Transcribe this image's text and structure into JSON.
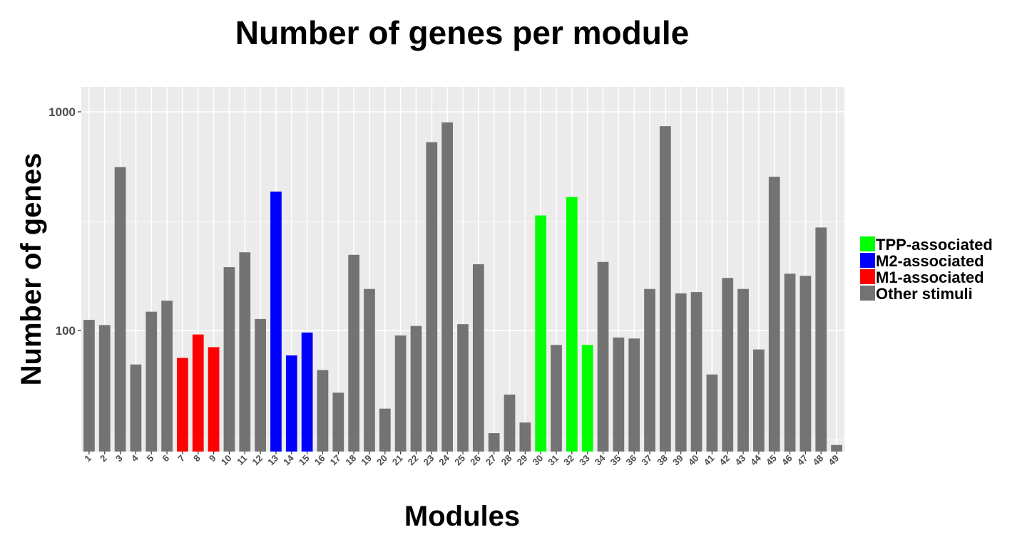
{
  "chart_data": {
    "type": "bar",
    "title": "Number of genes per module",
    "xlabel": "Modules",
    "ylabel": "Number of genes",
    "y_scale": "log10",
    "ylim": [
      28,
      1300
    ],
    "y_ticks": [
      100,
      1000
    ],
    "y_tick_labels": [
      "100",
      "1000"
    ],
    "grid": true,
    "legend_position": "right",
    "categories": [
      "1",
      "2",
      "3",
      "4",
      "5",
      "6",
      "7",
      "8",
      "9",
      "10",
      "11",
      "12",
      "13",
      "14",
      "15",
      "16",
      "17",
      "18",
      "19",
      "20",
      "21",
      "22",
      "23",
      "24",
      "25",
      "26",
      "27",
      "28",
      "29",
      "30",
      "31",
      "32",
      "33",
      "34",
      "35",
      "36",
      "37",
      "38",
      "39",
      "40",
      "41",
      "42",
      "43",
      "44",
      "45",
      "46",
      "47",
      "48",
      "49"
    ],
    "values": [
      112,
      106,
      559,
      70,
      122,
      137,
      75,
      96,
      84,
      195,
      228,
      113,
      432,
      77,
      98,
      66,
      52,
      222,
      155,
      44,
      95,
      105,
      727,
      895,
      107,
      201,
      34,
      51,
      38,
      336,
      86,
      408,
      86,
      206,
      93,
      92,
      155,
      860,
      148,
      150,
      63,
      174,
      155,
      82,
      505,
      182,
      178,
      296,
      30
    ],
    "groups": [
      "Other stimuli",
      "Other stimuli",
      "Other stimuli",
      "Other stimuli",
      "Other stimuli",
      "Other stimuli",
      "M1-associated",
      "M1-associated",
      "M1-associated",
      "Other stimuli",
      "Other stimuli",
      "Other stimuli",
      "M2-associated",
      "M2-associated",
      "M2-associated",
      "Other stimuli",
      "Other stimuli",
      "Other stimuli",
      "Other stimuli",
      "Other stimuli",
      "Other stimuli",
      "Other stimuli",
      "Other stimuli",
      "Other stimuli",
      "Other stimuli",
      "Other stimuli",
      "Other stimuli",
      "Other stimuli",
      "Other stimuli",
      "TPP-associated",
      "Other stimuli",
      "TPP-associated",
      "TPP-associated",
      "Other stimuli",
      "Other stimuli",
      "Other stimuli",
      "Other stimuli",
      "Other stimuli",
      "Other stimuli",
      "Other stimuli",
      "Other stimuli",
      "Other stimuli",
      "Other stimuli",
      "Other stimuli",
      "Other stimuli",
      "Other stimuli",
      "Other stimuli",
      "Other stimuli",
      "Other stimuli"
    ],
    "legend": [
      {
        "name": "TPP-associated",
        "color": "#00ff00"
      },
      {
        "name": "M2-associated",
        "color": "#0000ff"
      },
      {
        "name": "M1-associated",
        "color": "#ff0000"
      },
      {
        "name": "Other stimuli",
        "color": "#737373"
      }
    ],
    "panel_background": "#ebebeb",
    "grid_color": "#ffffff"
  }
}
